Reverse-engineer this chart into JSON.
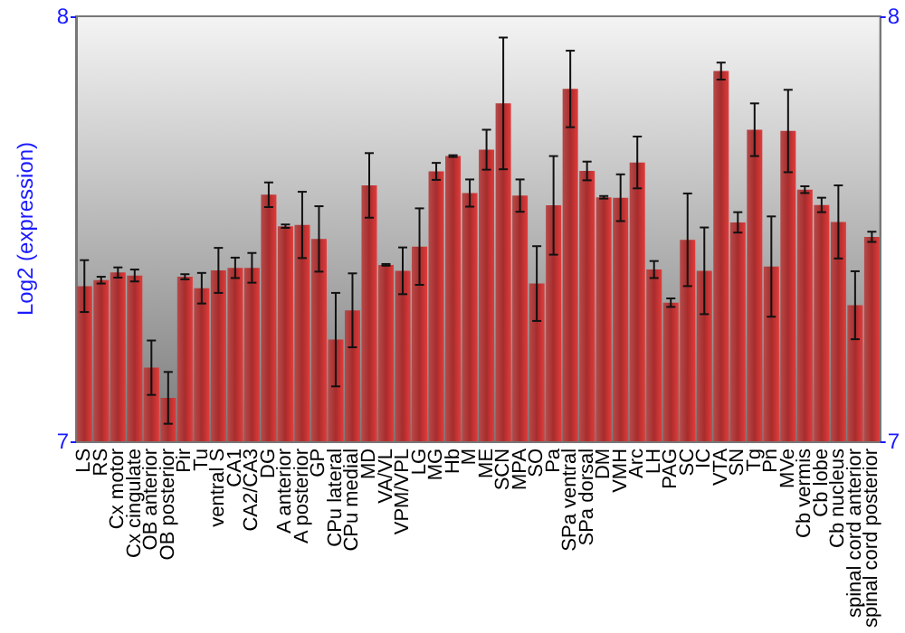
{
  "chart_data": {
    "type": "bar",
    "ylabel": "Log2 (expression)",
    "categories": [
      "LS",
      "RS",
      "Cx motor",
      "Cx cingulate",
      "OB anterior",
      "OB posterior",
      "Pir",
      "Tu",
      "ventral S",
      "CA1",
      "CA2/CA3",
      "DG",
      "A anterior",
      "A posterior",
      "GP",
      "CPu lateral",
      "CPu medial",
      "MD",
      "VA/VL",
      "VPM/VPL",
      "LG",
      "MG",
      "Hb",
      "M",
      "ME",
      "SCN",
      "MPA",
      "SO",
      "Pa",
      "SPa ventral",
      "SPa dorsal",
      "DM",
      "VMH",
      "Arc",
      "LH",
      "PAG",
      "SC",
      "IC",
      "VTA",
      "SN",
      "Tg",
      "Pn",
      "MVe",
      "Cb vermis",
      "Cb lobe",
      "Cb nucleus",
      "spinal cord anterior",
      "spinal cord posterior"
    ],
    "values": [
      7.365,
      7.379,
      7.397,
      7.39,
      7.173,
      7.102,
      7.387,
      7.36,
      7.402,
      7.408,
      7.408,
      7.58,
      7.506,
      7.509,
      7.476,
      7.239,
      7.308,
      7.602,
      7.415,
      7.401,
      7.458,
      7.635,
      7.671,
      7.584,
      7.686,
      7.795,
      7.578,
      7.371,
      7.555,
      7.829,
      7.636,
      7.574,
      7.573,
      7.656,
      7.404,
      7.326,
      7.474,
      7.401,
      7.871,
      7.515,
      7.733,
      7.411,
      7.73,
      7.592,
      7.556,
      7.516,
      7.32,
      7.481
    ],
    "errors": [
      0.061,
      0.008,
      0.012,
      0.014,
      0.064,
      0.061,
      0.006,
      0.036,
      0.053,
      0.024,
      0.035,
      0.029,
      0.004,
      0.078,
      0.077,
      0.11,
      0.087,
      0.076,
      0.002,
      0.055,
      0.09,
      0.02,
      0.002,
      0.032,
      0.047,
      0.155,
      0.038,
      0.088,
      0.116,
      0.09,
      0.022,
      0.003,
      0.055,
      0.061,
      0.02,
      0.01,
      0.109,
      0.102,
      0.02,
      0.024,
      0.062,
      0.118,
      0.097,
      0.008,
      0.017,
      0.086,
      0.08,
      0.012
    ],
    "color": "#a82c2c",
    "ylim": [
      7,
      8
    ],
    "yticks": [
      7,
      8
    ],
    "y2lim": [
      7,
      8
    ],
    "y2ticks": [
      7,
      8
    ],
    "grid": false
  }
}
